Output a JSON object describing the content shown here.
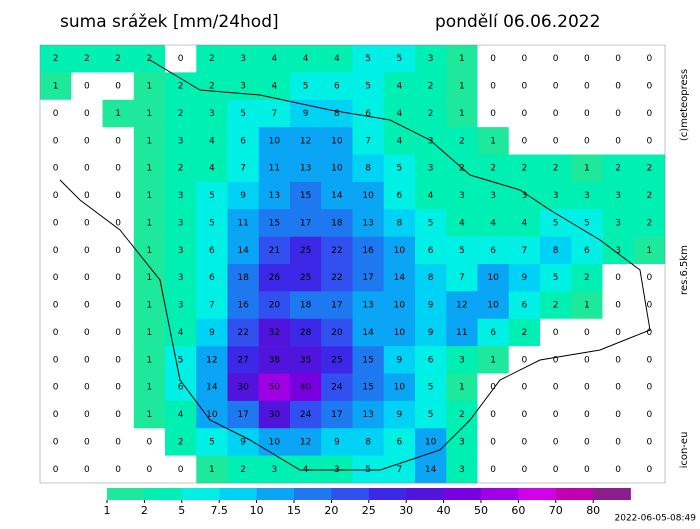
{
  "header": {
    "title": "suma srážek [mm/24hod]",
    "date": "pondělí 06.06.2022"
  },
  "side_labels": {
    "copyright": "(c)meteopress",
    "resolution": "res.6.5km",
    "model": "icon-eu"
  },
  "timestamp": "2022-06-05-08:49",
  "legend": {
    "ticks": [
      1,
      2,
      5,
      7.5,
      10,
      15,
      20,
      25,
      30,
      40,
      50,
      60,
      70,
      80
    ],
    "colors": [
      "#1ee89c",
      "#00f0b4",
      "#00f0e6",
      "#00d2f5",
      "#0aa5f5",
      "#1e78f0",
      "#3250f0",
      "#3c28e6",
      "#5014dc",
      "#7800e0",
      "#a000e6",
      "#d200e6",
      "#c000b0",
      "#8c1e8c"
    ]
  },
  "map": {
    "values": [
      [
        2,
        2,
        2,
        2,
        0,
        2,
        3,
        4,
        4,
        4,
        5,
        5,
        3,
        1,
        0,
        0,
        0,
        0,
        0,
        0
      ],
      [
        1,
        0,
        0,
        1,
        2,
        2,
        3,
        4,
        5,
        6,
        5,
        4,
        2,
        1,
        0,
        0,
        0,
        0,
        0,
        0
      ],
      [
        0,
        0,
        1,
        1,
        2,
        3,
        5,
        7,
        9,
        8,
        6,
        4,
        2,
        1,
        0,
        0,
        0,
        0,
        0,
        0
      ],
      [
        0,
        0,
        0,
        1,
        3,
        4,
        6,
        10,
        12,
        10,
        7,
        4,
        3,
        2,
        1,
        0,
        0,
        0,
        0,
        0
      ],
      [
        0,
        0,
        0,
        1,
        2,
        4,
        7,
        11,
        13,
        10,
        8,
        5,
        3,
        2,
        2,
        2,
        2,
        1,
        2,
        2
      ],
      [
        0,
        0,
        0,
        1,
        3,
        5,
        9,
        13,
        15,
        14,
        10,
        6,
        4,
        3,
        3,
        3,
        3,
        3,
        3,
        2
      ],
      [
        0,
        0,
        0,
        1,
        3,
        5,
        11,
        15,
        17,
        18,
        13,
        8,
        5,
        4,
        4,
        4,
        5,
        5,
        3,
        2
      ],
      [
        0,
        0,
        0,
        1,
        3,
        6,
        14,
        21,
        25,
        22,
        16,
        10,
        6,
        5,
        6,
        7,
        8,
        6,
        3,
        1
      ],
      [
        0,
        0,
        0,
        1,
        3,
        6,
        18,
        26,
        25,
        22,
        17,
        14,
        8,
        7,
        10,
        9,
        5,
        2,
        0,
        0
      ],
      [
        0,
        0,
        0,
        1,
        3,
        7,
        16,
        20,
        18,
        17,
        13,
        10,
        9,
        12,
        10,
        6,
        2,
        1,
        0,
        0
      ],
      [
        0,
        0,
        0,
        1,
        4,
        9,
        22,
        32,
        28,
        20,
        14,
        10,
        9,
        11,
        6,
        2,
        0,
        0,
        0,
        0
      ],
      [
        0,
        0,
        0,
        1,
        5,
        12,
        27,
        38,
        35,
        25,
        15,
        9,
        6,
        3,
        1,
        0,
        0,
        0,
        0,
        0
      ],
      [
        0,
        0,
        0,
        1,
        6,
        14,
        30,
        50,
        40,
        24,
        15,
        10,
        5,
        1,
        0,
        0,
        0,
        0,
        0,
        0
      ],
      [
        0,
        0,
        0,
        1,
        4,
        10,
        17,
        30,
        24,
        17,
        13,
        9,
        5,
        2,
        0,
        0,
        0,
        0,
        0,
        0
      ],
      [
        0,
        0,
        0,
        0,
        2,
        5,
        9,
        10,
        12,
        9,
        8,
        6,
        10,
        3,
        0,
        0,
        0,
        0,
        0,
        0
      ],
      [
        0,
        0,
        0,
        0,
        0,
        1,
        2,
        3,
        4,
        3,
        5,
        7,
        14,
        3,
        0,
        0,
        0,
        0,
        0,
        0
      ]
    ]
  }
}
